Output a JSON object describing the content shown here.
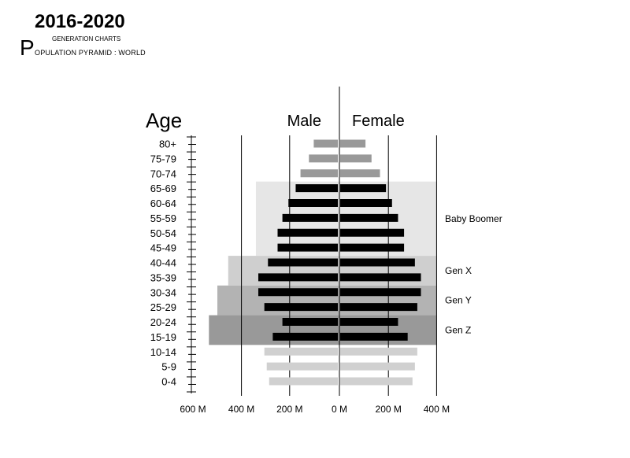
{
  "header": {
    "year_range": "2016-2020",
    "subtitle": "GENERATION CHARTS",
    "title_initial": "P",
    "title_rest": "OPULATION PYRAMID : WORLD"
  },
  "chart_data": {
    "type": "bar",
    "orientation": "horizontal-pyramid",
    "title": "POPULATION PYRAMID : WORLD",
    "axis_title_age": "Age",
    "unit": "M",
    "categories": [
      "80+",
      "75-79",
      "70-74",
      "65-69",
      "60-64",
      "55-59",
      "50-54",
      "45-49",
      "40-44",
      "35-39",
      "30-34",
      "25-29",
      "20-24",
      "15-19",
      "10-14",
      "5-9",
      "0-4"
    ],
    "series": [
      {
        "name": "Male",
        "values": [
          100,
          120,
          155,
          175,
          205,
          230,
          250,
          250,
          290,
          330,
          330,
          305,
          230,
          270,
          305,
          295,
          285
        ]
      },
      {
        "name": "Female",
        "values": [
          105,
          130,
          165,
          190,
          215,
          240,
          265,
          265,
          310,
          335,
          335,
          320,
          240,
          280,
          320,
          310,
          300
        ]
      }
    ],
    "bar_colors": {
      "0-4": "#d0d0d0",
      "5-9": "#d0d0d0",
      "10-14": "#d0d0d0",
      "15-19": "#000000",
      "20-24": "#000000",
      "25-29": "#000000",
      "30-34": "#000000",
      "35-39": "#000000",
      "40-44": "#000000",
      "45-49": "#000000",
      "50-54": "#000000",
      "55-59": "#000000",
      "60-64": "#000000",
      "65-69": "#000000",
      "70-74": "#999999",
      "75-79": "#999999",
      "80+": "#999999"
    },
    "x_ticks": [
      {
        "label": "600 M",
        "value": -600
      },
      {
        "label": "400 M",
        "value": -400
      },
      {
        "label": "200 M",
        "value": -200
      },
      {
        "label": "0 M",
        "value": 0
      },
      {
        "label": "200 M",
        "value": 200
      },
      {
        "label": "400 M",
        "value": 400
      }
    ],
    "xlim": [
      -600,
      400
    ],
    "generations": [
      {
        "name": "Baby Boomer",
        "from": "65-69",
        "to": "45-49",
        "male_extent": 340,
        "female_extent": 400,
        "color": "#e6e6e6"
      },
      {
        "name": "Gen X",
        "from": "40-44",
        "to": "35-39",
        "male_extent": 455,
        "female_extent": 400,
        "color": "#cfcfcf"
      },
      {
        "name": "Gen Y",
        "from": "30-34",
        "to": "25-29",
        "male_extent": 500,
        "female_extent": 400,
        "color": "#b3b3b3"
      },
      {
        "name": "Gen Z",
        "from": "20-24",
        "to": "15-19",
        "male_extent": 535,
        "female_extent": 400,
        "color": "#999999"
      }
    ]
  }
}
